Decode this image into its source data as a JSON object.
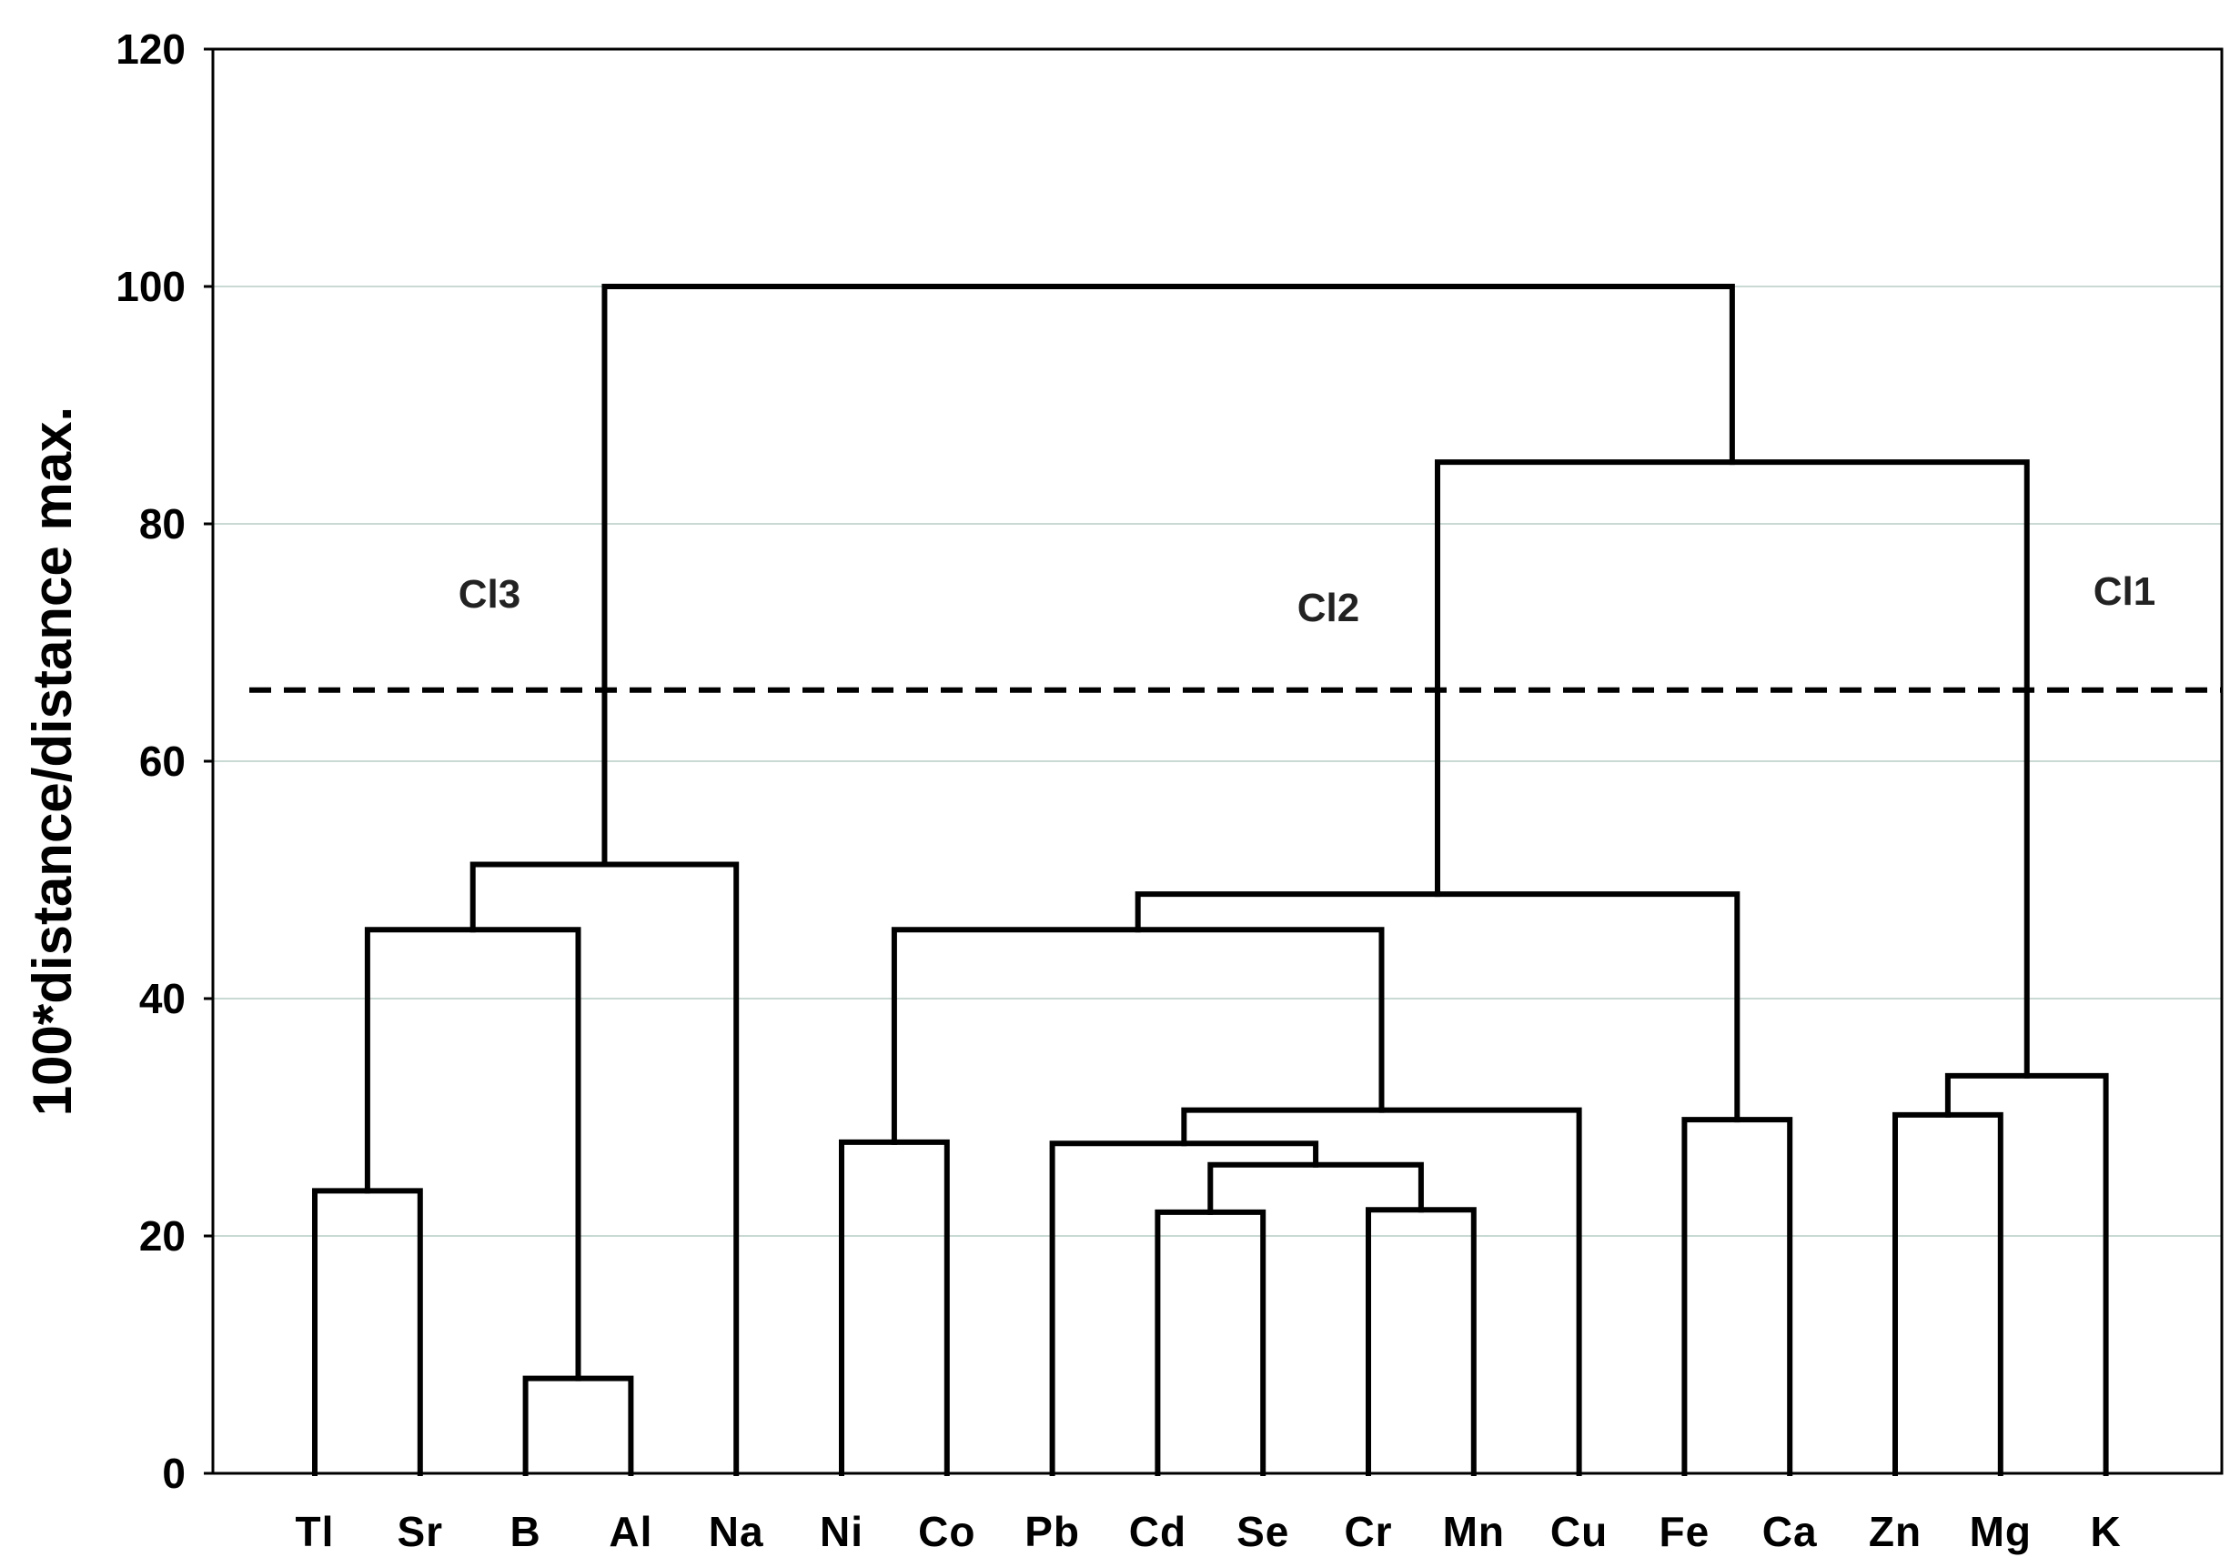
{
  "chart_data": {
    "type": "dendrogram",
    "ylabel": "100*distance/distance max.",
    "xlabel": "",
    "ylim": [
      0,
      120
    ],
    "yticks": [
      0,
      20,
      40,
      60,
      80,
      100,
      120
    ],
    "grid": true,
    "leaves": [
      "Tl",
      "Sr",
      "B",
      "Al",
      "Na",
      "Ni",
      "Co",
      "Pb",
      "Cd",
      "Se",
      "Cr",
      "Mn",
      "Cu",
      "Fe",
      "Ca",
      "Zn",
      "Mg",
      "K"
    ],
    "merges": [
      {
        "id": "m1",
        "left": "B",
        "right": "Al",
        "height": 8
      },
      {
        "id": "m2",
        "left": "Cd",
        "right": "Se",
        "height": 22
      },
      {
        "id": "m3",
        "left": "Cr",
        "right": "Mn",
        "height": 22.2
      },
      {
        "id": "m4",
        "left": "Tl",
        "right": "Sr",
        "height": 23.8
      },
      {
        "id": "m5",
        "left": "m2",
        "right": "m3",
        "height": 26
      },
      {
        "id": "m6",
        "left": "Pb",
        "right": "m5",
        "height": 27.8
      },
      {
        "id": "m7",
        "left": "Ni",
        "right": "Co",
        "height": 27.9
      },
      {
        "id": "m8",
        "left": "Fe",
        "right": "Ca",
        "height": 29.8
      },
      {
        "id": "m9",
        "left": "Zn",
        "right": "Mg",
        "height": 30.2
      },
      {
        "id": "m10",
        "left": "m6",
        "right": "Cu",
        "height": 30.6
      },
      {
        "id": "m11",
        "left": "m9",
        "right": "K",
        "height": 33.5
      },
      {
        "id": "m12",
        "left": "m4",
        "right": "m1",
        "height": 45.8
      },
      {
        "id": "m13",
        "left": "m7",
        "right": "m10",
        "height": 45.8
      },
      {
        "id": "m14",
        "left": "m13",
        "right": "m8",
        "height": 48.8
      },
      {
        "id": "m15",
        "left": "m12",
        "right": "Na",
        "height": 51.3
      },
      {
        "id": "m16",
        "left": "m14",
        "right": "m11",
        "height": 85.2
      },
      {
        "id": "m17",
        "left": "m15",
        "right": "m16",
        "height": 100
      }
    ],
    "cut_height": 66,
    "cluster_labels": [
      {
        "text": "Cl3",
        "position": "left"
      },
      {
        "text": "Cl2",
        "position": "center"
      },
      {
        "text": "Cl1",
        "position": "right"
      }
    ]
  }
}
